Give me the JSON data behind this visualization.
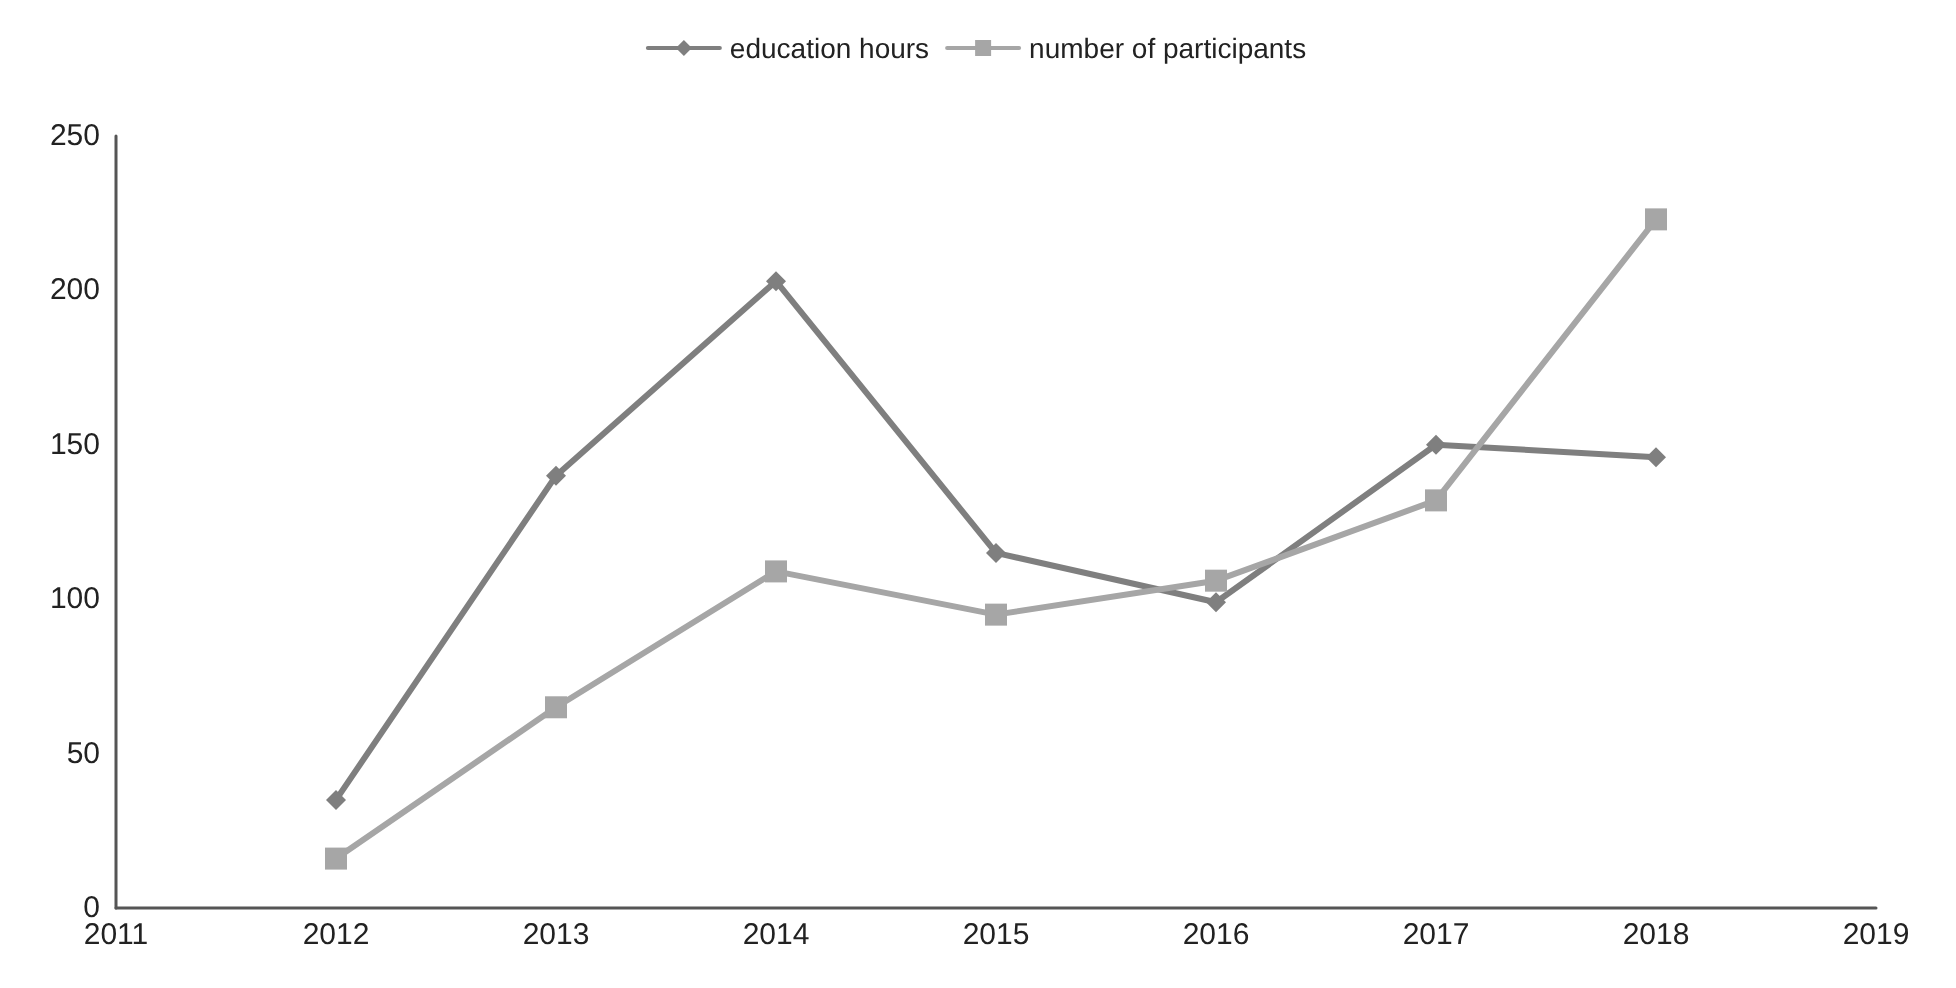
{
  "chart_data": {
    "type": "line",
    "x": [
      2012,
      2013,
      2014,
      2015,
      2016,
      2017,
      2018
    ],
    "series": [
      {
        "name": "education hours",
        "color": "#7f7f7f",
        "marker": "diamond",
        "values": [
          35,
          140,
          203,
          115,
          99,
          150,
          146
        ]
      },
      {
        "name": "number of participants",
        "color": "#a6a6a6",
        "marker": "square",
        "values": [
          16,
          65,
          109,
          95,
          106,
          132,
          223
        ]
      }
    ],
    "xlim": [
      2011,
      2019
    ],
    "xticks": [
      2011,
      2012,
      2013,
      2014,
      2015,
      2016,
      2017,
      2018,
      2019
    ],
    "ylim": [
      0,
      250
    ],
    "yticks": [
      0,
      50,
      100,
      150,
      200,
      250
    ],
    "grid": false,
    "legend": "top",
    "line_style": "solid"
  }
}
